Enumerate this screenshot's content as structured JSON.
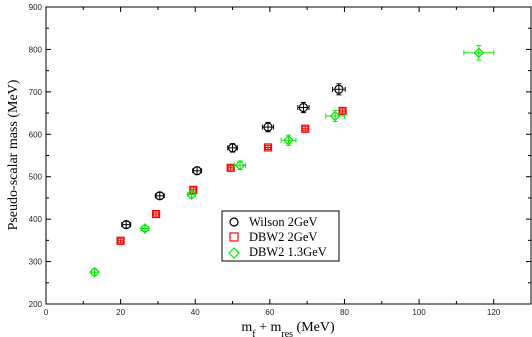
{
  "chart_data": {
    "type": "scatter",
    "title": "",
    "xlabel": {
      "base": "m",
      "sub1": "f",
      "mid": " + m",
      "sub2": "res",
      "unit": "  (MeV)"
    },
    "ylabel": "Pseudo-scalar mass (MeV)",
    "xlim": [
      0,
      130
    ],
    "ylim": [
      200,
      900
    ],
    "xticks": [
      0,
      20,
      40,
      60,
      80,
      100,
      120
    ],
    "yticks": [
      200,
      300,
      400,
      500,
      600,
      700,
      800,
      900
    ],
    "grid": false,
    "legend_position": "center",
    "series": [
      {
        "name": "Wilson 2GeV",
        "marker": "circle",
        "color": "#000000",
        "points": [
          {
            "x": 21.5,
            "y": 387,
            "xerr": 1.2,
            "yerr": 8
          },
          {
            "x": 30.5,
            "y": 455,
            "xerr": 1.2,
            "yerr": 8
          },
          {
            "x": 40.5,
            "y": 514,
            "xerr": 1.2,
            "yerr": 9
          },
          {
            "x": 50.0,
            "y": 568,
            "xerr": 1.3,
            "yerr": 10
          },
          {
            "x": 59.5,
            "y": 617,
            "xerr": 1.5,
            "yerr": 11
          },
          {
            "x": 69.0,
            "y": 663,
            "xerr": 1.5,
            "yerr": 12
          },
          {
            "x": 78.5,
            "y": 706,
            "xerr": 1.7,
            "yerr": 13
          }
        ]
      },
      {
        "name": "DBW2 2GeV",
        "marker": "square",
        "color": "#ff0000",
        "points": [
          {
            "x": 20.0,
            "y": 349,
            "xerr": 0.7,
            "yerr": 5
          },
          {
            "x": 29.5,
            "y": 412,
            "xerr": 0.7,
            "yerr": 5
          },
          {
            "x": 39.5,
            "y": 469,
            "xerr": 0.7,
            "yerr": 5
          },
          {
            "x": 49.5,
            "y": 521,
            "xerr": 0.7,
            "yerr": 5
          },
          {
            "x": 59.5,
            "y": 569,
            "xerr": 0.7,
            "yerr": 5
          },
          {
            "x": 69.5,
            "y": 613,
            "xerr": 0.7,
            "yerr": 5
          },
          {
            "x": 79.5,
            "y": 655,
            "xerr": 0.7,
            "yerr": 5
          }
        ]
      },
      {
        "name": "DBW2 1.3GeV",
        "marker": "diamond",
        "color": "#00ee00",
        "points": [
          {
            "x": 13.0,
            "y": 275,
            "xerr": 0.8,
            "yerr": 7
          },
          {
            "x": 26.5,
            "y": 378,
            "xerr": 1.0,
            "yerr": 7
          },
          {
            "x": 39.0,
            "y": 458,
            "xerr": 1.0,
            "yerr": 8
          },
          {
            "x": 52.0,
            "y": 527,
            "xerr": 1.5,
            "yerr": 10
          },
          {
            "x": 65.0,
            "y": 586,
            "xerr": 2.0,
            "yerr": 12
          },
          {
            "x": 77.5,
            "y": 643,
            "xerr": 2.5,
            "yerr": 13
          },
          {
            "x": 116.0,
            "y": 792,
            "xerr": 4.0,
            "yerr": 17
          }
        ]
      }
    ]
  }
}
